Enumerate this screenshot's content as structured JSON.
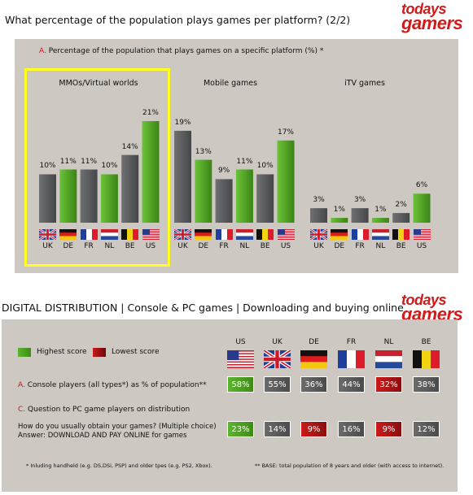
{
  "top": {
    "title": "What percentage of the population plays games per platform? (2/2)",
    "subtitle_letter": "A.",
    "subtitle": "Percentage of the population that plays games on a specific platform (%) *",
    "logo_line1": "todays",
    "logo_line2": "gamers"
  },
  "chart_data": {
    "type": "bar",
    "title": "Percentage of the population that plays games on a specific platform (%)",
    "categories": [
      "UK",
      "DE",
      "FR",
      "NL",
      "BE",
      "US"
    ],
    "ylim": [
      0,
      21
    ],
    "groups": [
      {
        "name": "MMOs/Virtual worlds",
        "values": [
          10,
          11,
          11,
          10,
          14,
          21
        ],
        "labels": [
          "10%",
          "11%",
          "11%",
          "10%",
          "14%",
          "21%"
        ],
        "highlighted": true
      },
      {
        "name": "Mobile games",
        "values": [
          19,
          13,
          9,
          11,
          10,
          17
        ],
        "labels": [
          "19%",
          "13%",
          "9%",
          "11%",
          "10%",
          "17%"
        ],
        "highlighted": false
      },
      {
        "name": "iTV games",
        "values": [
          3,
          1,
          3,
          1,
          2,
          6
        ],
        "labels": [
          "3%",
          "1%",
          "3%",
          "1%",
          "2%",
          "6%"
        ],
        "highlighted": false
      }
    ],
    "colors": {
      "green": "#4e9e22",
      "grey": "#5a5c5e"
    }
  },
  "bottom": {
    "title": "DIGITAL DISTRIBUTION | Console & PC games | Downloading and buying online",
    "logo_line1": "todays",
    "logo_line2": "gamers",
    "legend_high": "Highest score",
    "legend_low": "Lowest score",
    "countries": [
      "US",
      "UK",
      "DE",
      "FR",
      "NL",
      "BE"
    ],
    "row_a_letter": "A.",
    "row_a_label": "Console players (all types*) as % of population**",
    "row_a_values": [
      "58%",
      "55%",
      "36%",
      "44%",
      "32%",
      "38%"
    ],
    "row_a_styles": [
      "g",
      "d",
      "d",
      "d",
      "r",
      "d"
    ],
    "row_c_letter": "C.",
    "row_c_label": "Question to PC game players on distribution",
    "row_c_q1": "How do you usually obtain your games? (Multiple choice)",
    "row_c_q2": "Answer: DOWNLOAD AND PAY ONLINE for games",
    "row_c_values": [
      "23%",
      "14%",
      "9%",
      "16%",
      "9%",
      "12%"
    ],
    "row_c_styles": [
      "g",
      "d",
      "r",
      "d",
      "r",
      "d"
    ],
    "foot_left": "* Inluding handheld (e.g. DS,DSi, PSP) and older tpes (e.g. PS2, Xbox).",
    "foot_right": "** BASE: total population of 8 years and older (with access to internet)."
  }
}
